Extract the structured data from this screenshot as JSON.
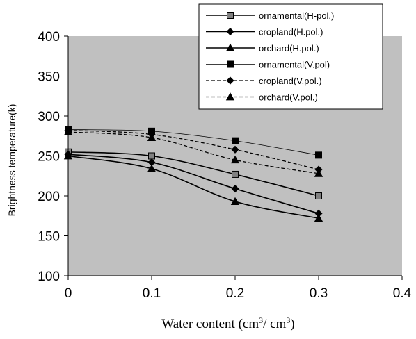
{
  "chart_data": {
    "type": "line",
    "xlabel": "Water content (cm3/ cm3)",
    "xlabel_parts": {
      "text": "Water content (cm",
      "sup1": "3",
      "mid": "/ cm",
      "sup2": "3",
      "end": ")"
    },
    "ylabel": "Brightness temperature(k)",
    "xlim": [
      0,
      0.4
    ],
    "ylim": [
      100,
      400
    ],
    "x_ticks": [
      "0",
      "0.1",
      "0.2",
      "0.3",
      "0.4"
    ],
    "y_ticks": [
      "100",
      "150",
      "200",
      "250",
      "300",
      "350",
      "400"
    ],
    "grid": false,
    "plot_background": "#c0c0c0",
    "legend_position": "top-right",
    "x": [
      0,
      0.1,
      0.2,
      0.3
    ],
    "series": [
      {
        "name": "ornamental(H-pol.)",
        "values": [
          255,
          250,
          227,
          200
        ],
        "marker": "square",
        "marker_fill": "#808080",
        "line": "solid",
        "line_width": 1.6
      },
      {
        "name": "cropland(H.pol.)",
        "values": [
          252,
          242,
          209,
          178
        ],
        "marker": "diamond",
        "marker_fill": "#000000",
        "line": "solid",
        "line_width": 1.6
      },
      {
        "name": "orchard(H.pol.)",
        "values": [
          250,
          234,
          193,
          172
        ],
        "marker": "triangle",
        "marker_fill": "#000000",
        "line": "solid",
        "line_width": 1.6
      },
      {
        "name": "ornamental(V.pol)",
        "values": [
          283,
          281,
          269,
          251
        ],
        "marker": "square",
        "marker_fill": "#000000",
        "line": "solid",
        "line_width": 0.8
      },
      {
        "name": "cropland(V.pol.)",
        "values": [
          282,
          277,
          258,
          233
        ],
        "marker": "diamond",
        "marker_fill": "#000000",
        "line": "dashed",
        "line_width": 1.3
      },
      {
        "name": "orchard(V.pol.)",
        "values": [
          280,
          273,
          245,
          228
        ],
        "marker": "triangle",
        "marker_fill": "#000000",
        "line": "dashed",
        "line_width": 1.3
      }
    ]
  }
}
